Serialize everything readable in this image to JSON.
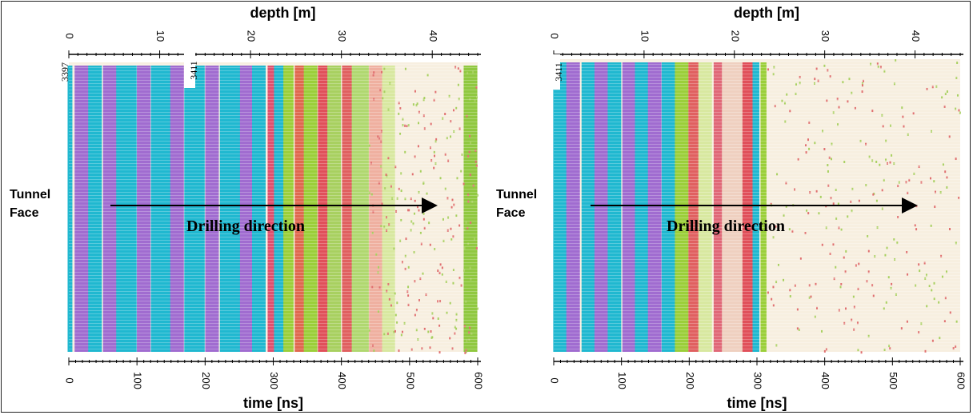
{
  "chart_data": [
    {
      "type": "heatmap",
      "title": "",
      "x_top_label": "depth [m]",
      "x_top_ticks": [
        0,
        10,
        20,
        30,
        40
      ],
      "x_top_range": [
        0,
        45
      ],
      "x_bottom_label": "time [ns]",
      "x_bottom_ticks": [
        0,
        100,
        200,
        300,
        400,
        500,
        600
      ],
      "x_bottom_range": [
        0,
        600
      ],
      "row_label": "Tunnel Face",
      "trace_labels": [
        "3397",
        "3411"
      ],
      "annotation": "Drilling direction",
      "bands": [
        {
          "from": 0,
          "to": 7,
          "color": "#20b8d0"
        },
        {
          "from": 7,
          "to": 30,
          "color": "#a06cd0"
        },
        {
          "from": 30,
          "to": 50,
          "color": "#20b8d0"
        },
        {
          "from": 50,
          "to": 70,
          "color": "#a06cd0"
        },
        {
          "from": 70,
          "to": 100,
          "color": "#20b8d0"
        },
        {
          "from": 100,
          "to": 120,
          "color": "#a06cd0"
        },
        {
          "from": 120,
          "to": 150,
          "color": "#20b8d0"
        },
        {
          "from": 150,
          "to": 170,
          "color": "#a06cd0"
        },
        {
          "from": 170,
          "to": 200,
          "color": "#20b8d0"
        },
        {
          "from": 200,
          "to": 220,
          "color": "#a06cd0"
        },
        {
          "from": 220,
          "to": 250,
          "color": "#20b8d0"
        },
        {
          "from": 250,
          "to": 270,
          "color": "#a06cd0"
        },
        {
          "from": 270,
          "to": 290,
          "color": "#20b8d0"
        },
        {
          "from": 290,
          "to": 300,
          "color": "#e0506e"
        },
        {
          "from": 300,
          "to": 315,
          "color": "#20b8d0"
        },
        {
          "from": 315,
          "to": 330,
          "color": "#9bcf3a"
        },
        {
          "from": 330,
          "to": 345,
          "color": "#e06850"
        },
        {
          "from": 345,
          "to": 365,
          "color": "#9bcf3a"
        },
        {
          "from": 365,
          "to": 380,
          "color": "#e0505a"
        },
        {
          "from": 380,
          "to": 400,
          "color": "#a8d060"
        },
        {
          "from": 400,
          "to": 415,
          "color": "#e06060"
        },
        {
          "from": 415,
          "to": 440,
          "color": "#b0d870"
        },
        {
          "from": 440,
          "to": 460,
          "color": "#efb0a0"
        },
        {
          "from": 460,
          "to": 480,
          "color": "#d8e8a0"
        },
        {
          "from": 480,
          "to": 580,
          "color": "#f7efe0"
        },
        {
          "from": 580,
          "to": 600,
          "color": "#90c840"
        }
      ]
    },
    {
      "type": "heatmap",
      "title": "",
      "x_top_label": "depth [m]",
      "x_top_ticks": [
        0,
        10,
        20,
        30,
        40
      ],
      "x_top_range": [
        0,
        45
      ],
      "x_bottom_label": "time [ns]",
      "x_bottom_ticks": [
        0,
        100,
        200,
        300,
        400,
        500,
        600
      ],
      "x_bottom_range": [
        0,
        600
      ],
      "row_label": "Tunnel Face",
      "trace_labels": [
        "3411"
      ],
      "annotation": "Drilling direction",
      "bands": [
        {
          "from": 0,
          "to": 20,
          "color": "#20b8d0"
        },
        {
          "from": 20,
          "to": 40,
          "color": "#a06cd0"
        },
        {
          "from": 40,
          "to": 60,
          "color": "#20b8d0"
        },
        {
          "from": 60,
          "to": 80,
          "color": "#a06cd0"
        },
        {
          "from": 80,
          "to": 100,
          "color": "#20b8d0"
        },
        {
          "from": 100,
          "to": 120,
          "color": "#a06cd0"
        },
        {
          "from": 120,
          "to": 140,
          "color": "#20b8d0"
        },
        {
          "from": 140,
          "to": 160,
          "color": "#a06cd0"
        },
        {
          "from": 160,
          "to": 180,
          "color": "#20b8d0"
        },
        {
          "from": 180,
          "to": 200,
          "color": "#9bcf3a"
        },
        {
          "from": 200,
          "to": 215,
          "color": "#e06060"
        },
        {
          "from": 215,
          "to": 235,
          "color": "#d8e8a0"
        },
        {
          "from": 235,
          "to": 250,
          "color": "#e06878"
        },
        {
          "from": 250,
          "to": 280,
          "color": "#efd0c0"
        },
        {
          "from": 280,
          "to": 295,
          "color": "#e0505a"
        },
        {
          "from": 295,
          "to": 305,
          "color": "#20b8d0"
        },
        {
          "from": 305,
          "to": 315,
          "color": "#9bcf3a"
        },
        {
          "from": 315,
          "to": 600,
          "color": "#f7efe0"
        }
      ]
    }
  ]
}
